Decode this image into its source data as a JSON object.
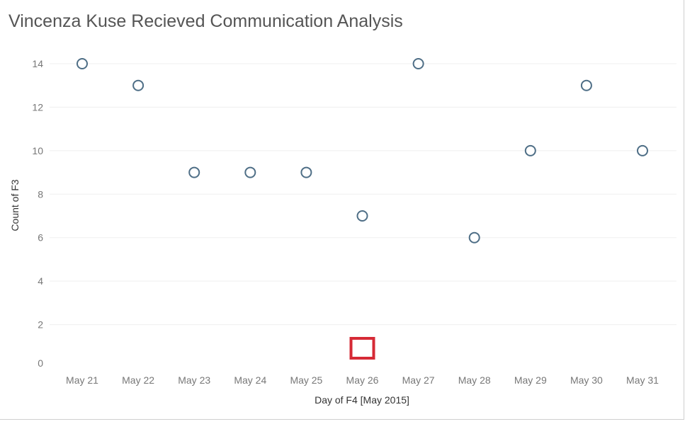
{
  "chart_data": {
    "type": "scatter",
    "title": "Vincenza Kuse Recieved Communication Analysis",
    "xlabel": "Day of F4 [May 2015]",
    "ylabel": "Count of F3",
    "categories": [
      "May 21",
      "May 22",
      "May 23",
      "May 24",
      "May 25",
      "May 26",
      "May 27",
      "May 28",
      "May 29",
      "May 30",
      "May 31"
    ],
    "values": [
      14,
      13,
      9,
      9,
      9,
      7,
      14,
      6,
      10,
      13,
      10
    ],
    "ylim": [
      0,
      15
    ],
    "yticks": [
      0,
      2,
      4,
      6,
      8,
      10,
      12,
      14
    ],
    "grid": "horizontal",
    "marker": "open-circle",
    "marker_color": "#4e6e86",
    "highlight": {
      "category": "May 26",
      "color": "#d62a36",
      "shape": "square"
    }
  }
}
